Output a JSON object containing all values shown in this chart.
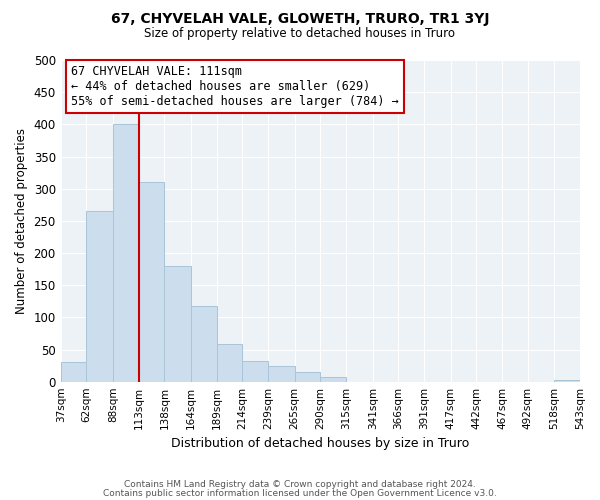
{
  "title": "67, CHYVELAH VALE, GLOWETH, TRURO, TR1 3YJ",
  "subtitle": "Size of property relative to detached houses in Truro",
  "xlabel": "Distribution of detached houses by size in Truro",
  "ylabel": "Number of detached properties",
  "bar_color": "#ccdded",
  "bar_edge_color": "#aac4d8",
  "bins": [
    37,
    62,
    88,
    113,
    138,
    164,
    189,
    214,
    239,
    265,
    290,
    315,
    341,
    366,
    391,
    417,
    442,
    467,
    492,
    518,
    543
  ],
  "counts": [
    30,
    265,
    400,
    310,
    180,
    117,
    58,
    32,
    25,
    15,
    7,
    0,
    0,
    0,
    0,
    0,
    0,
    0,
    0,
    2
  ],
  "property_line_x": 113,
  "annotation_title": "67 CHYVELAH VALE: 111sqm",
  "annotation_line1": "← 44% of detached houses are smaller (629)",
  "annotation_line2": "55% of semi-detached houses are larger (784) →",
  "vline_color": "#cc0000",
  "annotation_box_color": "#ffffff",
  "annotation_box_edge": "#cc0000",
  "ylim": [
    0,
    500
  ],
  "yticks": [
    0,
    50,
    100,
    150,
    200,
    250,
    300,
    350,
    400,
    450,
    500
  ],
  "footer_line1": "Contains HM Land Registry data © Crown copyright and database right 2024.",
  "footer_line2": "Contains public sector information licensed under the Open Government Licence v3.0.",
  "background_color": "#ffffff",
  "plot_bg_color": "#edf2f7",
  "grid_color": "#ffffff",
  "tick_labels": [
    "37sqm",
    "62sqm",
    "88sqm",
    "113sqm",
    "138sqm",
    "164sqm",
    "189sqm",
    "214sqm",
    "239sqm",
    "265sqm",
    "290sqm",
    "315sqm",
    "341sqm",
    "366sqm",
    "391sqm",
    "417sqm",
    "442sqm",
    "467sqm",
    "492sqm",
    "518sqm",
    "543sqm"
  ]
}
